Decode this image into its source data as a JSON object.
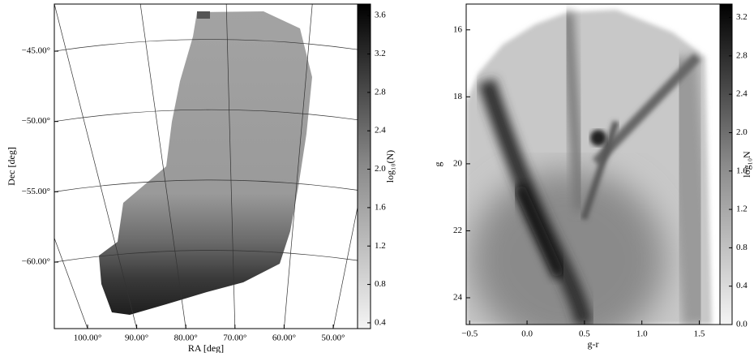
{
  "chart_data": [
    {
      "type": "skymap",
      "xlabel": "RA [deg]",
      "ylabel": "Dec [deg]",
      "xlim": [
        106.77,
        45.05
      ],
      "ylim": [
        -64.73,
        -41.65
      ],
      "xticks": [
        {
          "value": 100,
          "label": "100.00°"
        },
        {
          "value": 90,
          "label": "90.00°"
        },
        {
          "value": 80,
          "label": "80.00°"
        },
        {
          "value": 70,
          "label": "70.00°"
        },
        {
          "value": 60,
          "label": "60.00°"
        },
        {
          "value": 50,
          "label": "50.00°"
        }
      ],
      "yticks": [
        {
          "value": -45,
          "label": "−45.00°"
        },
        {
          "value": -50,
          "label": "−50.00°"
        },
        {
          "value": -55,
          "label": "−55.00°"
        },
        {
          "value": -60,
          "label": "−60.00°"
        }
      ],
      "grid": true,
      "colorbar": {
        "label": "log₁₀(N)",
        "lim": [
          0.34,
          3.72
        ],
        "ticks": [
          0.4,
          0.8,
          1.2,
          1.6,
          {
            "value": 2,
            "label": "2.0"
          },
          2.4,
          2.8,
          3.2,
          3.6
        ]
      }
    },
    {
      "type": "hess",
      "xlabel": "g-r",
      "ylabel": "g",
      "xlim": [
        -0.53,
        1.68
      ],
      "ylim": [
        24.8,
        15.23
      ],
      "xticks": [
        {
          "value": -0.5,
          "label": "−0.5"
        },
        {
          "value": 0,
          "label": "0.0"
        },
        0.5,
        {
          "value": 1,
          "label": "1.0"
        },
        1.5
      ],
      "yticks": [
        16,
        18,
        20,
        22,
        24
      ],
      "grid": false,
      "colorbar": {
        "label": "log₁₀N",
        "lim": [
          0,
          3.34
        ],
        "ticks": [
          {
            "value": 0,
            "label": "0.0"
          },
          0.4,
          0.8,
          1.2,
          1.6,
          {
            "value": 2,
            "label": "2.0"
          },
          2.4,
          2.8,
          3.2
        ]
      }
    }
  ]
}
